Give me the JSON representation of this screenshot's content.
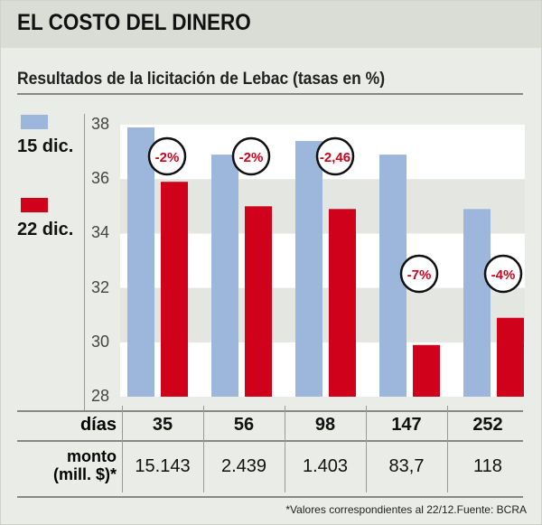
{
  "title": "EL COSTO DEL DINERO",
  "subtitle": "Resultados de la licitación de Lebac (tasas en %)",
  "legend": [
    {
      "label": "15 dic.",
      "color": "#9db7dc"
    },
    {
      "label": "22 dic.",
      "color": "#d0021b"
    }
  ],
  "chart_data": {
    "type": "bar",
    "categories": [
      "35",
      "56",
      "98",
      "147",
      "252"
    ],
    "series": [
      {
        "name": "15 dic.",
        "values": [
          37.9,
          36.9,
          37.4,
          36.9,
          34.9
        ]
      },
      {
        "name": "22 dic.",
        "values": [
          35.9,
          35.0,
          34.9,
          29.9,
          30.9
        ]
      }
    ],
    "annotations": [
      "-2%",
      "-2%",
      "-2,46",
      "-7%",
      "-4%"
    ],
    "yticks": [
      "38",
      "36",
      "34",
      "32",
      "30",
      "28"
    ],
    "ylim": [
      28,
      38
    ],
    "ylabel": "tasas en %"
  },
  "table": {
    "row1_label": "días",
    "days": [
      "35",
      "56",
      "98",
      "147",
      "252"
    ],
    "row2_label1": "monto",
    "row2_label2": "(mill. $)*",
    "amounts": [
      "15.143",
      "2.439",
      "1.403",
      "83,7",
      "118"
    ]
  },
  "footnote": "*Valores correspondientes al 22/12.Fuente: BCRA"
}
